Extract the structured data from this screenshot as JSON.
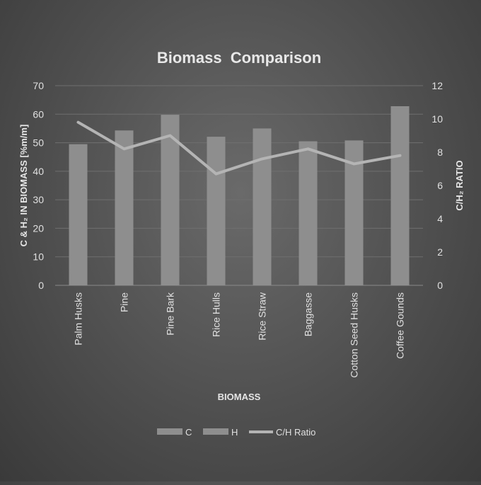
{
  "chart_data": {
    "type": "bar",
    "title": "Biomass  Comparison",
    "xlabel": "BIOMASS",
    "ylabel": "C & H₂ IN BIOMASS [%m/m]",
    "y2label": "C/H₂ RATIO",
    "categories": [
      "Palm Husks",
      "Pine",
      "Pine Bark",
      "Rice Hulls",
      "Rice Straw",
      "Baggasse",
      "Cotton Seed Husks",
      "Coffee Gounds"
    ],
    "ylim": [
      0,
      70
    ],
    "yticks": [
      0,
      10,
      20,
      30,
      40,
      50,
      60,
      70
    ],
    "y2lim": [
      0,
      12
    ],
    "y2ticks": [
      0,
      2,
      4,
      6,
      8,
      10,
      12
    ],
    "grid": true,
    "legend_position": "bottom",
    "series": [
      {
        "name": "C",
        "type": "bar",
        "axis": "left",
        "values": [
          0,
          0,
          0,
          0,
          0,
          0,
          0,
          0
        ],
        "color": "#8e8e8e"
      },
      {
        "name": "H",
        "type": "bar",
        "axis": "left",
        "values": [
          49.5,
          54.3,
          59.8,
          52.1,
          55.0,
          50.5,
          50.8,
          62.8
        ],
        "color": "#8e8e8e"
      },
      {
        "name": "C/H Ratio",
        "type": "line",
        "axis": "right",
        "values": [
          9.8,
          8.2,
          9.0,
          6.7,
          7.6,
          8.2,
          7.3,
          7.8
        ],
        "color": "#b4b4b4"
      }
    ]
  }
}
